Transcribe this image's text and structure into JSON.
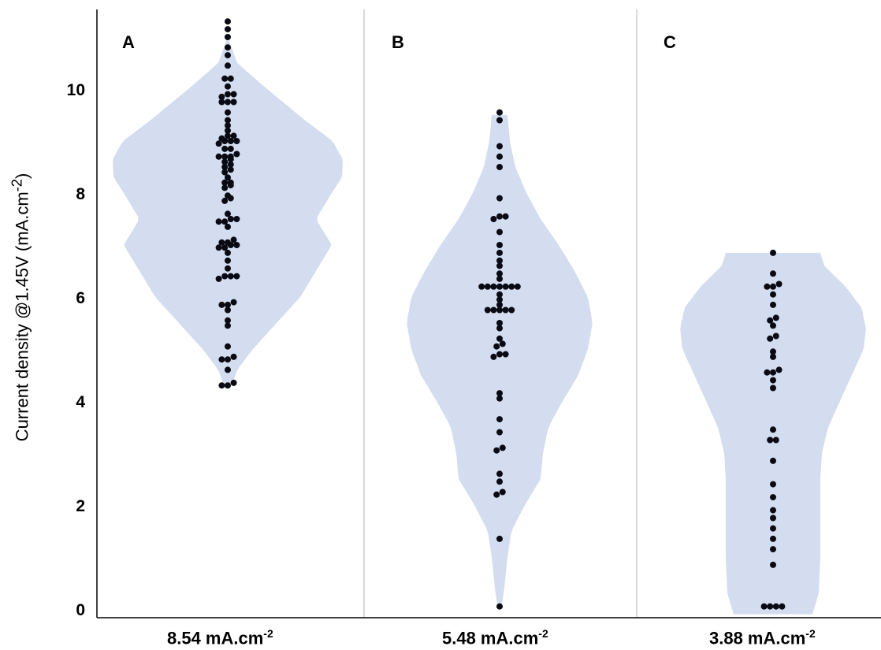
{
  "chart_data": {
    "type": "violin",
    "ylabel": "Current density @1.45V (mA.cm",
    "ylabel_sup": "-2",
    "ylabel_tail": ")",
    "ylim": [
      0,
      11.3
    ],
    "yticks": [
      "0",
      "2",
      "4",
      "6",
      "8",
      "10"
    ],
    "colors": {
      "violin": "#d3ddef",
      "dot": "#0a0a14",
      "divider": "#d9d9d9"
    },
    "panels": [
      {
        "letter": "A",
        "xlabel": "8.54 mA.cm",
        "xlabel_sup": "-2",
        "range": [
          4.3,
          11.3
        ],
        "points": [
          11.3,
          11.15,
          11.0,
          10.8,
          10.65,
          10.45,
          10.2,
          10.2,
          10.05,
          9.9,
          9.9,
          9.85,
          9.75,
          9.75,
          9.75,
          9.55,
          9.4,
          9.3,
          9.2,
          9.1,
          9.1,
          9.05,
          9.0,
          9.0,
          9.0,
          8.95,
          8.85,
          8.85,
          8.75,
          8.7,
          8.7,
          8.7,
          8.65,
          8.6,
          8.55,
          8.5,
          8.45,
          8.4,
          8.3,
          8.2,
          8.2,
          8.15,
          8.1,
          7.95,
          7.9,
          7.85,
          7.6,
          7.5,
          7.5,
          7.45,
          7.45,
          7.35,
          7.1,
          7.05,
          7.05,
          7.0,
          7.0,
          6.95,
          6.95,
          6.85,
          6.7,
          6.55,
          6.4,
          6.4,
          6.4,
          6.35,
          5.9,
          5.85,
          5.85,
          5.75,
          5.55,
          5.45,
          5.05,
          4.85,
          4.8,
          4.8,
          4.6,
          4.35,
          4.3,
          4.3
        ]
      },
      {
        "letter": "B",
        "xlabel": "5.48 mA.cm",
        "xlabel_sup": "-2",
        "range": [
          0,
          9.5
        ],
        "points": [
          9.55,
          9.4,
          8.9,
          8.7,
          8.5,
          7.9,
          7.55,
          7.55,
          7.5,
          7.25,
          7.0,
          6.85,
          6.7,
          6.6,
          6.45,
          6.35,
          6.2,
          6.2,
          6.2,
          6.2,
          6.2,
          6.2,
          6.2,
          6.05,
          5.95,
          5.85,
          5.75,
          5.75,
          5.75,
          5.75,
          5.75,
          5.5,
          5.4,
          5.2,
          5.1,
          5.05,
          4.9,
          4.9,
          4.85,
          4.15,
          4.05,
          3.65,
          3.4,
          3.1,
          3.05,
          2.6,
          2.45,
          2.25,
          2.2,
          1.35,
          0.05
        ]
      },
      {
        "letter": "C",
        "xlabel": "3.88 mA.cm",
        "xlabel_sup": "-2",
        "range": [
          -0.1,
          6.85
        ],
        "points": [
          6.85,
          6.45,
          6.25,
          6.2,
          6.2,
          6.05,
          5.85,
          5.6,
          5.55,
          5.45,
          5.25,
          5.2,
          4.95,
          4.85,
          4.6,
          4.55,
          4.55,
          4.4,
          4.25,
          3.45,
          3.25,
          3.25,
          2.85,
          2.4,
          2.15,
          1.9,
          1.75,
          1.55,
          1.35,
          1.15,
          0.85,
          0.05,
          0.05,
          0.05,
          0.05
        ]
      }
    ]
  }
}
